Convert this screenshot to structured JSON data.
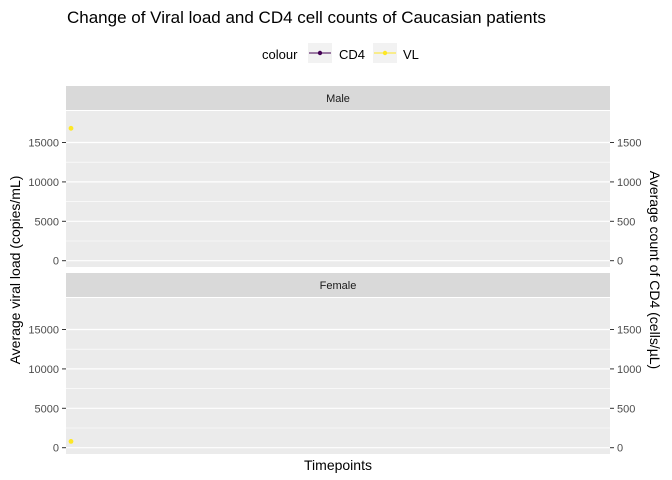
{
  "chart_data": {
    "type": "line",
    "title": "Change of Viral load and CD4 cell counts of Caucasian patients",
    "xlabel": "Timepoints",
    "ylabel": "Average viral load (copies/mL)",
    "ylabel_right": "Average count of CD4 (cells/µL)",
    "legend": {
      "title": "colour",
      "position": "top",
      "entries": [
        {
          "name": "CD4",
          "color": "#440154"
        },
        {
          "name": "VL",
          "color": "#fde725"
        }
      ]
    },
    "y_left": {
      "range": [
        -800,
        19000
      ],
      "ticks": [
        0,
        5000,
        10000,
        15000
      ],
      "tick_labels": [
        "0",
        "5000",
        "10000",
        "15000"
      ]
    },
    "y_right": {
      "range": [
        -80,
        1900
      ],
      "ticks": [
        0,
        500,
        1000,
        1500
      ],
      "tick_labels": [
        "0",
        "500",
        "1000",
        "1500"
      ]
    },
    "grid": true,
    "facets": [
      {
        "label": "Male",
        "series": [
          {
            "name": "VL",
            "points": [
              {
                "x": 0,
                "y": 16800
              }
            ]
          }
        ]
      },
      {
        "label": "Female",
        "series": [
          {
            "name": "VL",
            "points": [
              {
                "x": 0,
                "y": 800
              }
            ]
          }
        ]
      }
    ]
  }
}
